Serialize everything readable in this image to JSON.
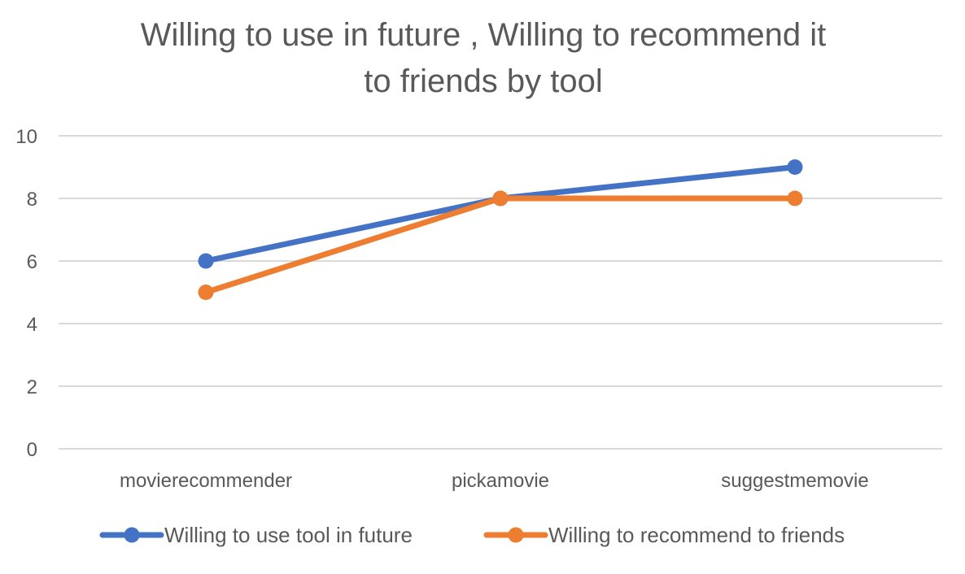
{
  "chart_data": {
    "type": "line",
    "title_lines": [
      "Willing to use in future , Willing to recommend it",
      "to friends by tool"
    ],
    "categories": [
      "movierecommender",
      "pickamovie",
      "suggestmemovie"
    ],
    "series": [
      {
        "name": "Willing to use tool in future",
        "values": [
          6,
          8,
          9
        ],
        "color": "#4472C4"
      },
      {
        "name": "Willing to recommend to friends",
        "values": [
          5,
          8,
          8
        ],
        "color": "#ED7D31"
      }
    ],
    "yticks": [
      "0",
      "2",
      "4",
      "6",
      "8",
      "10"
    ],
    "ylim": [
      0,
      10
    ],
    "xlabel": "",
    "ylabel": "",
    "grid": true,
    "legend_position": "bottom"
  }
}
